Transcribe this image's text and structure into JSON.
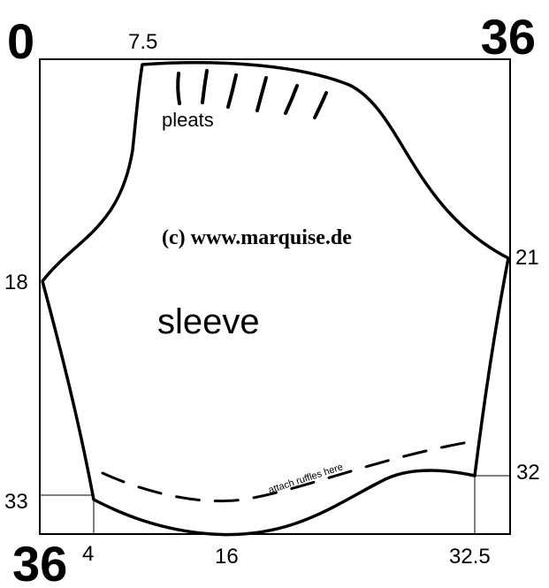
{
  "corners": {
    "top_left": "0",
    "top_right": "36",
    "bottom_left": "36",
    "bottom_left_super": "4"
  },
  "marks": {
    "top": "7.5",
    "right_upper": "21",
    "left_mid": "18",
    "left_lower": "33",
    "bottom_mid": "16",
    "bottom_right": "32.5",
    "right_lower": "32"
  },
  "labels": {
    "pleats": "pleats",
    "copyright": "(c) www.marquise.de",
    "sleeve": "sleeve",
    "ruffles": "attach ruffles here"
  },
  "colors": {
    "ink": "#000000",
    "paper": "#ffffff"
  }
}
